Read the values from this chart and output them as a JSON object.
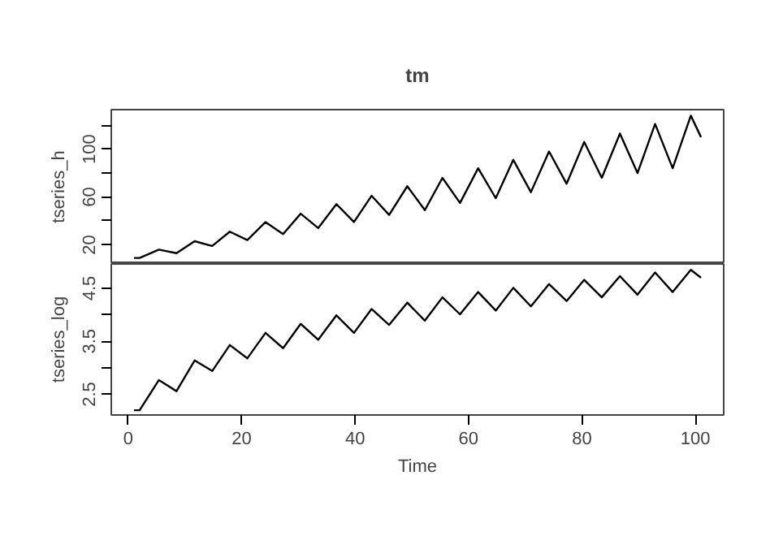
{
  "chart_data": [
    {
      "type": "line",
      "title": "tm",
      "ylabel": "tseries_h",
      "xlim": [
        -3,
        105
      ],
      "ylim": [
        4,
        133
      ],
      "yticks": [
        20,
        {
          "value": 40,
          "label": null
        },
        60,
        {
          "value": 80,
          "label": null
        },
        100,
        {
          "value": 120,
          "label": null
        }
      ],
      "tick_labels": "y",
      "x": [
        1,
        2,
        5.4,
        8.5,
        11.7,
        14.8,
        17.9,
        21.0,
        24.2,
        27.3,
        30.4,
        33.5,
        36.7,
        39.8,
        42.9,
        46.0,
        49.2,
        52.3,
        55.4,
        58.5,
        61.7,
        64.8,
        67.9,
        71.0,
        74.2,
        77.3,
        80.4,
        83.5,
        86.7,
        89.8,
        92.9,
        96.0,
        99.2,
        101
      ],
      "series": [
        {
          "color": "#000000",
          "values": [
            9,
            9,
            16,
            13,
            23,
            19,
            31,
            24,
            39,
            29,
            46,
            34,
            54,
            39,
            61,
            45,
            69,
            49,
            76,
            55,
            84,
            59,
            91,
            64,
            98,
            71,
            106,
            76,
            113,
            80,
            121,
            84,
            128,
            110
          ]
        }
      ]
    },
    {
      "type": "line",
      "xlabel": "Time",
      "ylabel": "tseries_log",
      "xlim": [
        -3,
        105
      ],
      "ylim": [
        2.11,
        4.96
      ],
      "xticks": [
        0,
        20,
        40,
        60,
        80,
        100
      ],
      "yticks": [
        2.5,
        {
          "value": 3.0,
          "label": null
        },
        3.5,
        {
          "value": 4.0,
          "label": null
        },
        4.5
      ],
      "x": [
        1,
        2,
        5.4,
        8.5,
        11.7,
        14.8,
        17.9,
        21.0,
        24.2,
        27.3,
        30.4,
        33.5,
        36.7,
        39.8,
        42.9,
        46.0,
        49.2,
        52.3,
        55.4,
        58.5,
        61.7,
        64.8,
        67.9,
        71.0,
        74.2,
        77.3,
        80.4,
        83.5,
        86.7,
        89.8,
        92.9,
        96.0,
        99.2,
        101
      ],
      "series": [
        {
          "color": "#000000",
          "values": [
            2.2,
            2.2,
            2.77,
            2.56,
            3.14,
            2.94,
            3.43,
            3.18,
            3.66,
            3.37,
            3.83,
            3.53,
            3.99,
            3.66,
            4.11,
            3.81,
            4.23,
            3.89,
            4.33,
            4.01,
            4.43,
            4.08,
            4.51,
            4.16,
            4.58,
            4.26,
            4.66,
            4.33,
            4.73,
            4.38,
            4.8,
            4.43,
            4.85,
            4.7
          ]
        }
      ]
    }
  ]
}
